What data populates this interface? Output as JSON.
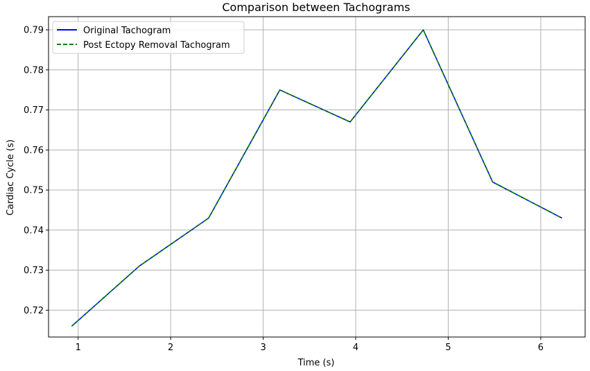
{
  "chart_data": {
    "type": "line",
    "title": "Comparison between Tachograms",
    "xlabel": "Time (s)",
    "ylabel": "Cardiac Cycle (s)",
    "xlim": [
      0.68,
      6.48
    ],
    "ylim": [
      0.7133,
      0.7933
    ],
    "x_ticks": [
      1,
      2,
      3,
      4,
      5,
      6
    ],
    "y_ticks": [
      0.72,
      0.73,
      0.74,
      0.75,
      0.76,
      0.77,
      0.78,
      0.79
    ],
    "x_tick_labels": [
      "1",
      "2",
      "3",
      "4",
      "5",
      "6"
    ],
    "y_tick_labels": [
      "0.72",
      "0.73",
      "0.74",
      "0.75",
      "0.76",
      "0.77",
      "0.78",
      "0.79"
    ],
    "grid": true,
    "legend_position": "top-left",
    "x": [
      0.93,
      1.66,
      2.41,
      3.18,
      3.94,
      4.73,
      5.48,
      6.23
    ],
    "series": [
      {
        "name": "Original Tachogram",
        "color": "#0000ff",
        "style": "solid",
        "values": [
          0.716,
          0.731,
          0.743,
          0.775,
          0.767,
          0.79,
          0.752,
          0.743
        ]
      },
      {
        "name": "Post Ectopy Removal Tachogram",
        "color": "#008000",
        "style": "dashed",
        "values": [
          0.716,
          0.731,
          0.743,
          0.775,
          0.767,
          0.79,
          0.752,
          0.743
        ]
      }
    ]
  }
}
